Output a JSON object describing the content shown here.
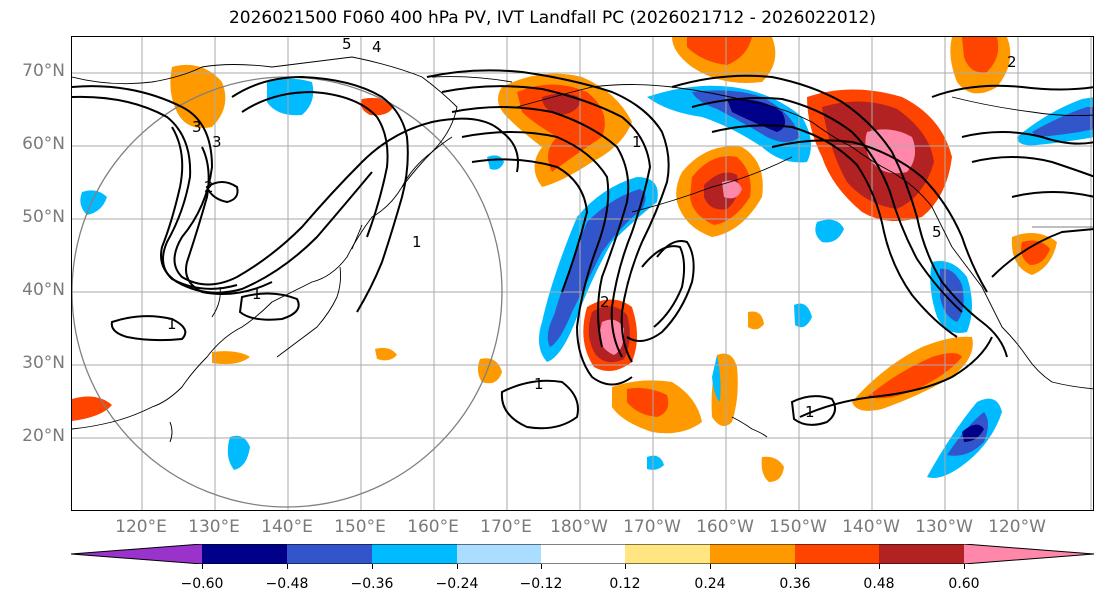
{
  "map": {
    "title": "2026021500 F060 400 hPa PV, IVT Landfall PC (2026021712 - 2026022012)",
    "projection": "cylindrical, North Pacific",
    "lat_labels": [
      "70°N",
      "60°N",
      "50°N",
      "40°N",
      "30°N",
      "20°N"
    ],
    "lon_labels": [
      "120°E",
      "130°E",
      "140°E",
      "150°E",
      "160°E",
      "170°E",
      "180°W",
      "170°W",
      "160°W",
      "150°W",
      "140°W",
      "130°W",
      "120°W"
    ],
    "contour_labels": [
      "1",
      "1",
      "1",
      "1",
      "1",
      "1",
      "2",
      "2",
      "2",
      "3",
      "3",
      "4",
      "5",
      "5"
    ],
    "colorbar": {
      "ticks": [
        "−0.60",
        "−0.48",
        "−0.36",
        "−0.24",
        "−0.12",
        "0.12",
        "0.24",
        "0.36",
        "0.48",
        "0.60"
      ],
      "colors": [
        "#9933cc",
        "#000088",
        "#3355cc",
        "#00bbff",
        "#aaddff",
        "#ffffff",
        "#ffe680",
        "#ff9900",
        "#ff4400",
        "#b22222",
        "#ff88aa"
      ]
    },
    "colors": {
      "pink": "#ff88aa",
      "darkred": "#b22222",
      "red": "#ff4400",
      "orange": "#ff9900",
      "yellow": "#ffe680",
      "paleblue": "#aaddff",
      "cyan": "#00bbff",
      "blue": "#3355cc",
      "navy": "#000088",
      "purple": "#9933cc"
    }
  }
}
